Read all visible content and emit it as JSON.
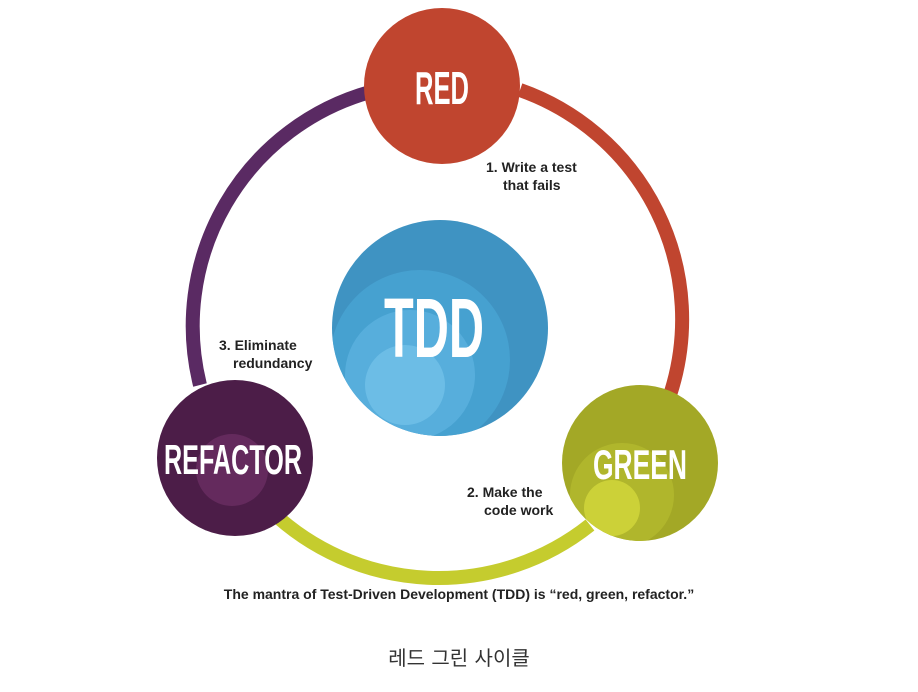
{
  "nodes": {
    "red": {
      "label": "RED",
      "color": "#c0452f"
    },
    "green": {
      "label": "GREEN",
      "color": "#a3a826"
    },
    "refactor": {
      "label": "REFACTOR",
      "color": "#4c1d48"
    },
    "center": {
      "label": "TDD",
      "color": "#3f93c2"
    }
  },
  "arcs": {
    "red_to_green": "#c0452f",
    "green_to_refactor": "#c5cc2e",
    "refactor_to_red": "#5a2a63"
  },
  "steps": [
    {
      "lines": [
        "1. Write a test",
        "that fails"
      ]
    },
    {
      "lines": [
        "2. Make the",
        "code work"
      ]
    },
    {
      "lines": [
        "3. Eliminate",
        "redundancy"
      ]
    }
  ],
  "mantra": "The mantra of Test-Driven Development (TDD) is “red, green, refactor.”",
  "caption": "레드 그린 사이클"
}
